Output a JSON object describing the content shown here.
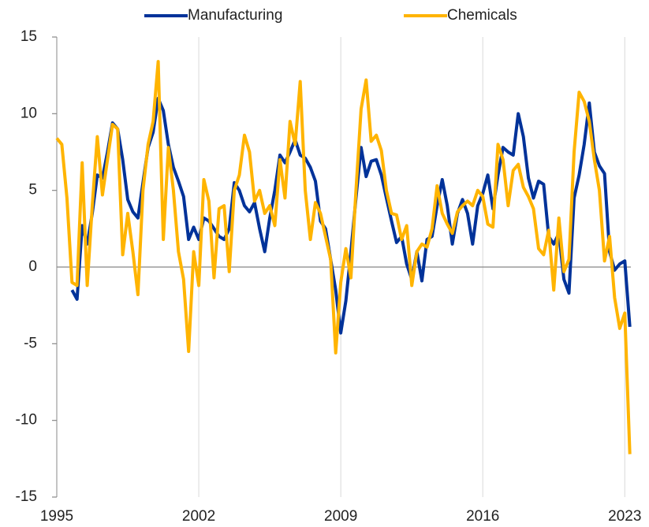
{
  "chart_data": {
    "type": "line",
    "x": [
      1995,
      1995.25,
      1995.5,
      1995.75,
      1996,
      1996.25,
      1996.5,
      1996.75,
      1997,
      1997.25,
      1997.5,
      1997.75,
      1998,
      1998.25,
      1998.5,
      1998.75,
      1999,
      1999.25,
      1999.5,
      1999.75,
      2000,
      2000.25,
      2000.5,
      2000.75,
      2001,
      2001.25,
      2001.5,
      2001.75,
      2002,
      2002.25,
      2002.5,
      2002.75,
      2003,
      2003.25,
      2003.5,
      2003.75,
      2004,
      2004.25,
      2004.5,
      2004.75,
      2005,
      2005.25,
      2005.5,
      2005.75,
      2006,
      2006.25,
      2006.5,
      2006.75,
      2007,
      2007.25,
      2007.5,
      2007.75,
      2008,
      2008.25,
      2008.5,
      2008.75,
      2009,
      2009.25,
      2009.5,
      2009.75,
      2010,
      2010.25,
      2010.5,
      2010.75,
      2011,
      2011.25,
      2011.5,
      2011.75,
      2012,
      2012.25,
      2012.5,
      2012.75,
      2013,
      2013.25,
      2013.5,
      2013.75,
      2014,
      2014.25,
      2014.5,
      2014.75,
      2015,
      2015.25,
      2015.5,
      2015.75,
      2016,
      2016.25,
      2016.5,
      2016.75,
      2017,
      2017.25,
      2017.5,
      2017.75,
      2018,
      2018.25,
      2018.5,
      2018.75,
      2019,
      2019.25,
      2019.5,
      2019.75,
      2020,
      2020.25,
      2020.5,
      2020.75,
      2021,
      2021.25,
      2021.5,
      2021.75,
      2022,
      2022.25,
      2022.5,
      2022.75,
      2023,
      2023.25
    ],
    "series": [
      {
        "name": "Manufacturing",
        "color": "#003299",
        "values": [
          null,
          null,
          null,
          -1.5,
          -2.1,
          2.7,
          1.5,
          3.5,
          6.0,
          5.8,
          7.5,
          9.4,
          9.0,
          7.0,
          4.4,
          3.6,
          3.2,
          5.5,
          7.8,
          8.8,
          11.0,
          10.2,
          8.0,
          6.5,
          5.6,
          4.6,
          1.8,
          2.6,
          1.8,
          3.2,
          3.0,
          2.5,
          2.0,
          1.8,
          2.5,
          5.5,
          5.0,
          4.0,
          3.6,
          4.2,
          2.5,
          1.0,
          3.2,
          5.0,
          7.3,
          6.8,
          7.5,
          8.3,
          7.3,
          7.1,
          6.5,
          5.6,
          3.0,
          2.5,
          0.5,
          -1.5,
          -4.3,
          -2.2,
          1.0,
          4.5,
          7.8,
          5.9,
          6.9,
          7.0,
          6.0,
          4.5,
          3.0,
          1.6,
          2.0,
          0.2,
          -0.8,
          1.0,
          -0.9,
          1.8,
          2.0,
          4.0,
          5.7,
          4.0,
          1.5,
          3.5,
          4.4,
          3.5,
          1.5,
          4.0,
          4.8,
          6.0,
          3.8,
          6.0,
          7.8,
          7.5,
          7.3,
          10.0,
          8.5,
          5.8,
          4.5,
          5.6,
          5.4,
          2.0,
          1.5,
          2.2,
          -0.8,
          -1.7,
          4.5,
          6.0,
          8.0,
          10.7,
          7.5,
          6.6,
          6.1,
          1.0,
          -0.2,
          0.2,
          0.4,
          -3.9
        ]
      },
      {
        "name": "Chemicals",
        "color": "#ffb400",
        "values": [
          8.4,
          8.0,
          4.5,
          -1.0,
          -1.2,
          6.8,
          -1.2,
          4.0,
          8.5,
          4.7,
          7.0,
          9.3,
          9.0,
          0.8,
          3.5,
          1.0,
          -1.8,
          5.0,
          8.0,
          9.5,
          13.4,
          1.8,
          7.8,
          5.0,
          1.0,
          -0.8,
          -5.5,
          1.0,
          -1.2,
          5.7,
          4.3,
          -0.7,
          3.8,
          4.0,
          -0.3,
          5.0,
          6.0,
          8.6,
          7.5,
          4.3,
          5.0,
          3.5,
          4.0,
          2.7,
          7.0,
          4.5,
          9.5,
          8.0,
          12.1,
          5.0,
          1.8,
          4.2,
          3.5,
          2.0,
          0.5,
          -5.6,
          -1.0,
          1.2,
          -0.7,
          5.0,
          10.3,
          12.2,
          8.2,
          8.6,
          7.6,
          5.0,
          3.5,
          3.4,
          1.8,
          2.7,
          -1.2,
          1.0,
          1.5,
          1.3,
          2.5,
          5.3,
          3.5,
          2.8,
          2.2,
          3.6,
          4.0,
          4.3,
          4.0,
          5.0,
          4.6,
          2.8,
          2.6,
          8.0,
          7.0,
          4.0,
          6.3,
          6.7,
          5.2,
          4.6,
          3.8,
          1.2,
          0.8,
          2.4,
          -1.5,
          3.2,
          -0.3,
          0.5,
          7.5,
          11.4,
          10.8,
          9.5,
          7.0,
          5.0,
          0.4,
          2.0,
          -2.0,
          -4.0,
          -3.0,
          -12.2
        ]
      }
    ],
    "xlim": [
      1995,
      2023.3
    ],
    "xticks": [
      1995,
      2002,
      2009,
      2016,
      2023
    ],
    "ylim": [
      -15,
      15
    ],
    "yticks": [
      -15,
      -10,
      -5,
      0,
      5,
      10,
      15
    ],
    "grid": true,
    "legend": "top"
  }
}
